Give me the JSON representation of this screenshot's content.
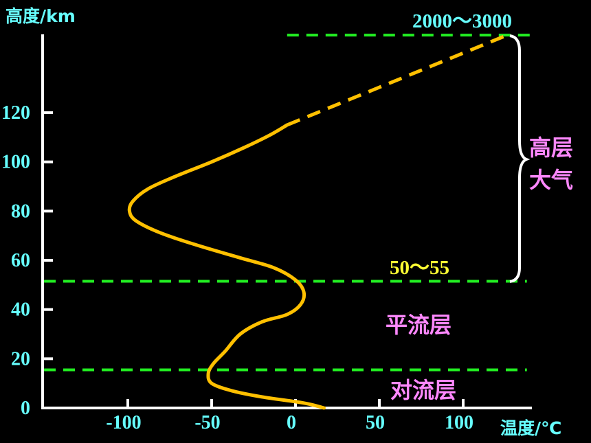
{
  "chart_data": {
    "type": "line",
    "title": "",
    "ylabel": "高度/km",
    "xlabel": "温度/℃",
    "xlim": [
      -150,
      140
    ],
    "ylim": [
      0,
      150
    ],
    "x_ticks": [
      -100,
      -50,
      0,
      50,
      100
    ],
    "x_tick_labels": [
      "-100",
      "-50",
      "0",
      "50",
      "100"
    ],
    "y_ticks": [
      0,
      20,
      40,
      60,
      80,
      100,
      120
    ],
    "y_tick_labels": [
      "0",
      "20",
      "40",
      "60",
      "80",
      "100",
      "120"
    ],
    "grid": false,
    "series": [
      {
        "color": "#FFC000",
        "style": "solid",
        "points": [
          [
            17,
            0
          ],
          [
            5,
            2
          ],
          [
            -20,
            4.5
          ],
          [
            -38,
            7
          ],
          [
            -50,
            10
          ],
          [
            -52,
            14
          ],
          [
            -49,
            18
          ],
          [
            -42,
            23
          ],
          [
            -33,
            30
          ],
          [
            -20,
            35
          ],
          [
            -5,
            38
          ],
          [
            3,
            42
          ],
          [
            5,
            47
          ],
          [
            0,
            52
          ],
          [
            -13,
            57
          ],
          [
            -33,
            61
          ],
          [
            -58,
            66
          ],
          [
            -80,
            71
          ],
          [
            -95,
            76
          ],
          [
            -99,
            80
          ],
          [
            -97,
            84
          ],
          [
            -88,
            89
          ],
          [
            -72,
            94
          ],
          [
            -50,
            100
          ],
          [
            -30,
            106
          ],
          [
            -15,
            111
          ],
          [
            -5,
            115
          ]
        ]
      },
      {
        "color": "#FFC000",
        "style": "dashed",
        "points": [
          [
            -5,
            115
          ],
          [
            128,
            152
          ]
        ]
      }
    ],
    "boundaries": [
      {
        "y": 15.5,
        "x_range": [
          -150,
          138
        ],
        "color": "#22EE22"
      },
      {
        "y": 51.5,
        "x_range": [
          -150,
          138
        ],
        "color": "#22EE22"
      },
      {
        "y": 151.5,
        "x_range": [
          -5,
          140
        ],
        "color": "#22EE22"
      }
    ],
    "annotations": {
      "top_height": "2000～3000",
      "stratopause_height": "50～55",
      "upper_atmosphere_line1": "高层",
      "upper_atmosphere_line2": "大气",
      "stratosphere": "平流层",
      "troposphere": "对流层"
    },
    "colors": {
      "background": "#000000",
      "axes": "#FFFFFF",
      "tick_labels": "#66FFFF",
      "axis_titles": "#66FFFF",
      "curve": "#FFC000",
      "boundary_lines": "#22EE22",
      "layer_labels": "#FF88FF",
      "height_range_labels_top": "#66FFFF",
      "height_range_label_mid": "#FFFF33"
    }
  }
}
